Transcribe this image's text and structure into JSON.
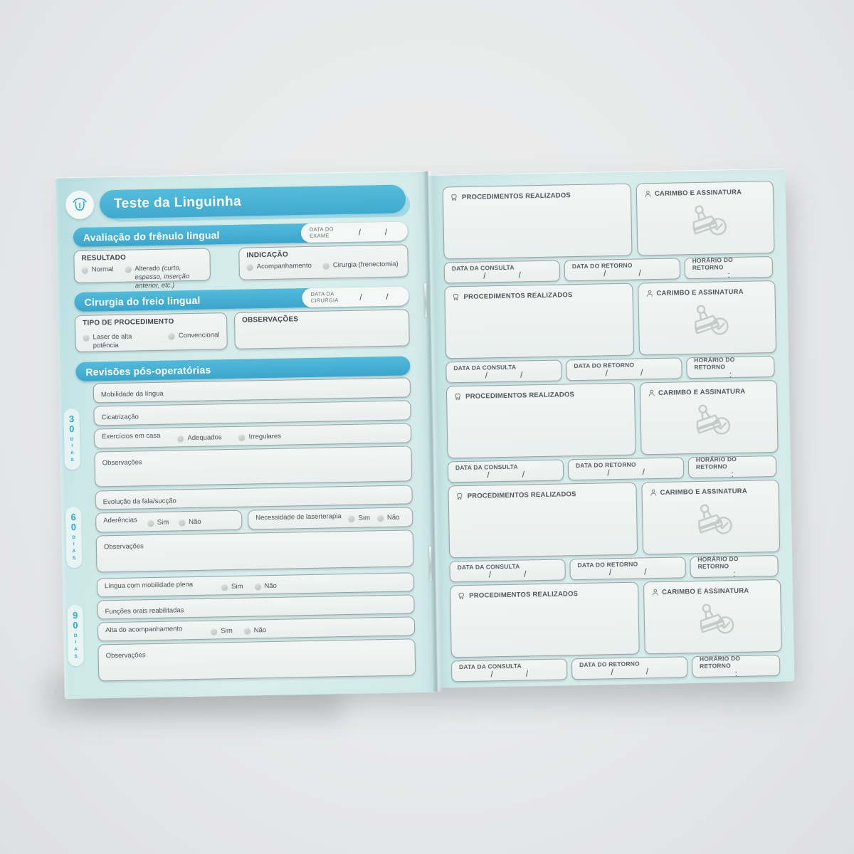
{
  "left_page": {
    "header": {
      "title": "Teste da Linguinha"
    },
    "exam_section": {
      "title": "Avaliação do frênulo lingual",
      "date_label_1": "DATA DO",
      "date_label_2": "EXAME",
      "slash": "/"
    },
    "resultado": {
      "label": "RESULTADO",
      "opt1": "Normal",
      "opt2": "Alterado",
      "opt2_note": "(curto, espesso, inserção anterior, etc.)"
    },
    "indicacao": {
      "label": "INDICAÇÃO",
      "opt1": "Acompanhamento",
      "opt2": "Cirurgia (frenectomia)"
    },
    "surgery_section": {
      "title": "Cirurgia do freio lingual",
      "date_label_1": "DATA DA",
      "date_label_2": "CIRURGIA",
      "slash": "/"
    },
    "procedimento": {
      "label": "TIPO DE PROCEDIMENTO",
      "opt1": "Laser de alta potência",
      "opt2": "Convencional"
    },
    "observacoes_label": "OBSERVAÇÕES",
    "revisoes_section": {
      "title": "Revisões pós-operatórias"
    },
    "dias30": {
      "num": "30",
      "word": "DIAS",
      "field1": "Mobilidade da língua",
      "field2": "Cicatrização",
      "field3": "Exercícios em casa",
      "field3_opt1": "Adequados",
      "field3_opt2": "Irregulares",
      "obs": "Observações"
    },
    "dias60": {
      "num": "60",
      "word": "DIAS",
      "field1": "Evolução da fala/sucção",
      "aderencias_label": "Aderências",
      "laser_label": "Necessidade de laserterapia",
      "sim": "Sim",
      "nao": "Não",
      "obs": "Observações"
    },
    "dias90": {
      "num": "90",
      "word": "DIAS",
      "field1": "Língua com mobilidade plena",
      "field2": "Funções orais reabilitadas",
      "field3": "Alta do acompanhamento",
      "sim": "Sim",
      "nao": "Não",
      "obs": "Observações"
    }
  },
  "right_page": {
    "block_count": 5,
    "visit_block": {
      "procedures_label": "PROCEDIMENTOS REALIZADOS",
      "stamp_label": "CARIMBO E ASSINATURA",
      "consulta_label": "DATA DA CONSULTA",
      "retorno_label": "DATA DO RETORNO",
      "horario_label": "HORÁRIO DO RETORNO",
      "slash": "/",
      "colon": ":"
    }
  },
  "colors": {
    "accent": "#45afd3",
    "paper": "#d5ecea",
    "field": "#eef2f1",
    "radio": "#c3c7c7",
    "day_label": "#2fa7d0"
  }
}
